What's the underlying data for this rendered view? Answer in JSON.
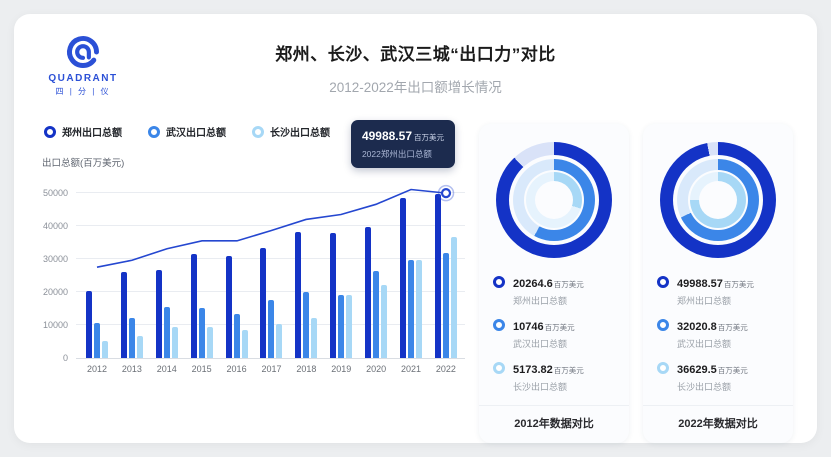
{
  "logo": {
    "brand": "QUADRANT",
    "sub": "四 | 分 | 仪"
  },
  "header": {
    "title": "郑州、长沙、武汉三城“出口力”对比",
    "subtitle": "2012-2022年出口额增长情况"
  },
  "colors": {
    "page_bg": "#eceef0",
    "card_bg": "#ffffff",
    "panel_bg": "#fbfcfe",
    "series": [
      "#1433c6",
      "#3b86e8",
      "#a7d8f6"
    ],
    "tracks": [
      "#d9e2f8",
      "#d9e9fb",
      "#e6f3fd"
    ],
    "line": "#2547d0",
    "grid": "#e9ecf1",
    "tooltip_bg": "#1c2b4e"
  },
  "chart_data": [
    {
      "type": "bar",
      "categories": [
        "2012",
        "2013",
        "2014",
        "2015",
        "2016",
        "2017",
        "2018",
        "2019",
        "2020",
        "2021",
        "2022"
      ],
      "series": [
        {
          "name": "郑州出口总额",
          "values": [
            20264.6,
            26100,
            26600,
            31600,
            31000,
            33400,
            38400,
            38100,
            39800,
            48600,
            49988.57
          ]
        },
        {
          "name": "武汉出口总额",
          "values": [
            10746,
            12100,
            15400,
            15100,
            13400,
            17500,
            20100,
            19300,
            26400,
            29800,
            32020.8
          ]
        },
        {
          "name": "长沙出口总额",
          "values": [
            5173.82,
            6600,
            9300,
            9300,
            8600,
            10300,
            12200,
            19300,
            22100,
            29800,
            36629.5
          ]
        }
      ],
      "trend_line": [
        27600,
        29700,
        33200,
        35600,
        35600,
        38700,
        42100,
        43600,
        46700,
        51200,
        50100
      ],
      "ylabel": "出口总额(百万美元)",
      "ylim": [
        0,
        55000
      ],
      "yticks": [
        0,
        10000,
        20000,
        30000,
        40000,
        50000
      ],
      "grid": true,
      "legend_position": "top",
      "tooltip": {
        "value": "49988.57",
        "unit": "百万美元",
        "label": "2022郑州出口总额"
      }
    },
    {
      "type": "donut",
      "caption": "2012年数据对比",
      "fractions": [
        0.88,
        0.58,
        0.3
      ],
      "items": [
        {
          "value": "20264.6",
          "unit": "百万美元",
          "label": "郑州出口总额"
        },
        {
          "value": "10746",
          "unit": "百万美元",
          "label": "武汉出口总额"
        },
        {
          "value": "5173.82",
          "unit": "百万美元",
          "label": "长沙出口总额"
        }
      ]
    },
    {
      "type": "donut",
      "caption": "2022年数据对比",
      "fractions": [
        0.97,
        0.68,
        0.75
      ],
      "items": [
        {
          "value": "49988.57",
          "unit": "百万美元",
          "label": "郑州出口总额"
        },
        {
          "value": "32020.8",
          "unit": "百万美元",
          "label": "武汉出口总额"
        },
        {
          "value": "36629.5",
          "unit": "百万美元",
          "label": "长沙出口总额"
        }
      ]
    }
  ]
}
